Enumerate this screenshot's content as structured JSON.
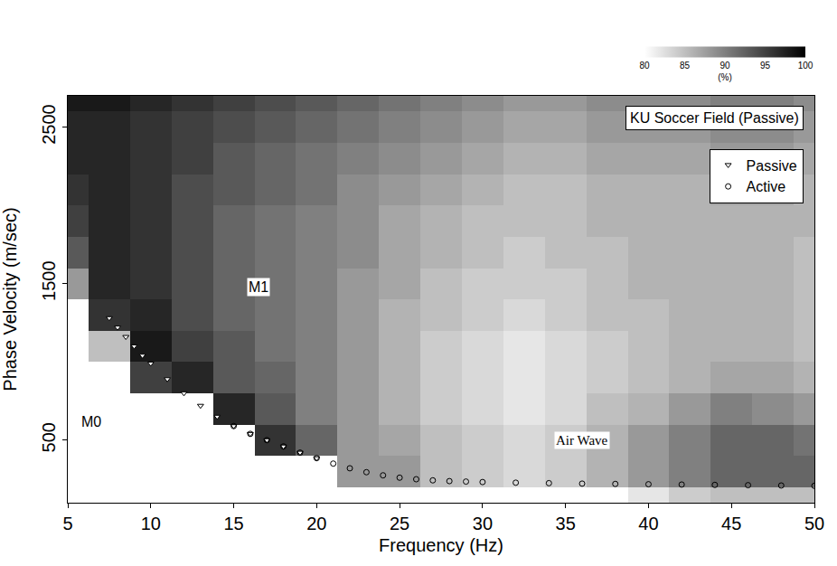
{
  "chart_data": {
    "type": "heatmap",
    "title": "KU Soccer Field (Passive)",
    "x_label": "Frequency (Hz)",
    "y_label": "Phase Velocity (m/sec)",
    "xlim": [
      5,
      50
    ],
    "ylim": [
      100,
      2700
    ],
    "xticks": [
      5,
      10,
      15,
      20,
      25,
      30,
      35,
      40,
      45,
      50
    ],
    "yticks": [
      500,
      1500,
      2500
    ],
    "grid": false,
    "legend": "top right",
    "colorbar": {
      "range": [
        80,
        100
      ],
      "ticks": [
        80,
        85,
        90,
        95,
        100
      ],
      "title": "(%)"
    },
    "heatmap": {
      "x": [
        5,
        7.5,
        10,
        12.5,
        15,
        17.5,
        20,
        22.5,
        25,
        27.5,
        30,
        32.5,
        35,
        37.5,
        40,
        42.5,
        45,
        47.5,
        50
      ],
      "y": [
        100,
        300,
        500,
        700,
        900,
        1100,
        1300,
        1500,
        1700,
        1900,
        2100,
        2300,
        2500,
        2700
      ],
      "z": [
        [
          70,
          70,
          70,
          70,
          70,
          70,
          70,
          75,
          80,
          78,
          78,
          78,
          78,
          80,
          82,
          84,
          85,
          85,
          85
        ],
        [
          70,
          70,
          70,
          70,
          70,
          70,
          72,
          88,
          88,
          85,
          84,
          83,
          84,
          86,
          88,
          90,
          92,
          92,
          92
        ],
        [
          70,
          70,
          70,
          70,
          75,
          96,
          92,
          88,
          87,
          85,
          84,
          83,
          84,
          86,
          88,
          90,
          92,
          92,
          91
        ],
        [
          70,
          70,
          70,
          80,
          97,
          93,
          90,
          88,
          86,
          84,
          83,
          82,
          83,
          85,
          86,
          88,
          90,
          89,
          88
        ],
        [
          70,
          72,
          95,
          97,
          93,
          92,
          90,
          88,
          86,
          84,
          83,
          82,
          83,
          84,
          85,
          86,
          87,
          87,
          86
        ],
        [
          70,
          85,
          98,
          95,
          93,
          91,
          90,
          88,
          86,
          84,
          83,
          82,
          83,
          84,
          85,
          86,
          86,
          86,
          85
        ],
        [
          75,
          96,
          97,
          94,
          92,
          91,
          90,
          88,
          86,
          85,
          84,
          83,
          84,
          85,
          85,
          86,
          86,
          86,
          85
        ],
        [
          88,
          97,
          96,
          94,
          92,
          91,
          90,
          88,
          87,
          85,
          84,
          84,
          84,
          85,
          86,
          86,
          86,
          86,
          85
        ],
        [
          93,
          97,
          96,
          94,
          92,
          91,
          90,
          89,
          87,
          86,
          85,
          84,
          85,
          85,
          86,
          86,
          86,
          86,
          85
        ],
        [
          95,
          97,
          96,
          94,
          92,
          91,
          90,
          89,
          87,
          86,
          85,
          85,
          85,
          86,
          86,
          86,
          86,
          86,
          86
        ],
        [
          96,
          97,
          96,
          94,
          93,
          92,
          91,
          89,
          88,
          87,
          86,
          85,
          85,
          86,
          86,
          86,
          87,
          87,
          86
        ],
        [
          97,
          97,
          96,
          95,
          93,
          92,
          91,
          90,
          89,
          88,
          87,
          86,
          86,
          87,
          87,
          87,
          88,
          88,
          87
        ],
        [
          97,
          97,
          96,
          95,
          94,
          93,
          92,
          91,
          90,
          89,
          88,
          87,
          87,
          88,
          88,
          88,
          89,
          89,
          88
        ],
        [
          98,
          98,
          97,
          96,
          95,
          94,
          93,
          92,
          91,
          90,
          89,
          88,
          88,
          89,
          89,
          89,
          90,
          90,
          89
        ]
      ]
    },
    "series": [
      {
        "name": "Passive",
        "type": "scatter",
        "marker": "triangle-down",
        "color": "#ffffff",
        "x": [
          7.5,
          8,
          8.5,
          9,
          9.5,
          10,
          11,
          12,
          13,
          14,
          15,
          16,
          17,
          18,
          19,
          20
        ],
        "values": [
          1280,
          1220,
          1160,
          1100,
          1040,
          990,
          890,
          800,
          720,
          650,
          590,
          540,
          500,
          460,
          420,
          385
        ]
      },
      {
        "name": "Active",
        "type": "scatter",
        "marker": "circle-open",
        "color": "#000000",
        "x": [
          15,
          16,
          17,
          18,
          19,
          20,
          21,
          22,
          23,
          24,
          25,
          26,
          27,
          28,
          29,
          30,
          32,
          34,
          36,
          38,
          40,
          42,
          44,
          46,
          48,
          50
        ],
        "values": [
          590,
          540,
          500,
          460,
          420,
          385,
          350,
          320,
          295,
          275,
          260,
          250,
          243,
          238,
          235,
          232,
          228,
          225,
          222,
          220,
          218,
          216,
          214,
          212,
          210,
          208
        ]
      }
    ],
    "annotations": [
      {
        "text": "M1",
        "x": 16.5,
        "y": 1480
      },
      {
        "text": "M0",
        "x": 6.4,
        "y": 620
      },
      {
        "text": "Air Wave",
        "x": 36,
        "y": 500
      }
    ]
  }
}
